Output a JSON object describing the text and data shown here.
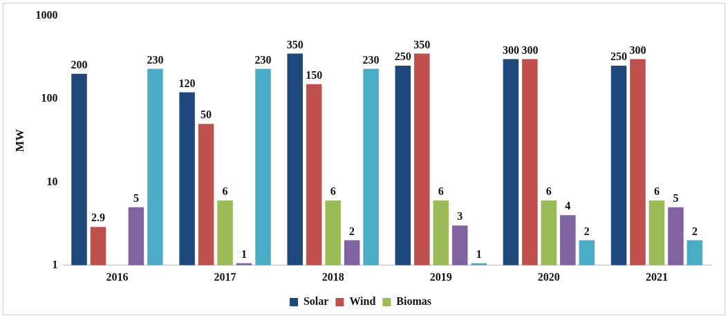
{
  "chart_data": {
    "type": "bar",
    "ylabel": "MW",
    "categories": [
      "2016",
      "2017",
      "2018",
      "2019",
      "2020",
      "2021"
    ],
    "series": [
      {
        "name": "Solar",
        "color": "#1f497d",
        "values": [
          200,
          120,
          350,
          250,
          300,
          250
        ]
      },
      {
        "name": "Wind",
        "color": "#c0504d",
        "values": [
          2.9,
          50,
          150,
          350,
          300,
          300
        ]
      },
      {
        "name": "Biomas",
        "color": "#9bbb59",
        "values": [
          null,
          6,
          6,
          6,
          6,
          6
        ]
      },
      {
        "color": "#8064a2",
        "values": [
          5,
          1,
          2,
          3,
          4,
          5
        ]
      },
      {
        "color": "#4bacc6",
        "values": [
          230,
          230,
          230,
          1,
          2,
          2
        ]
      }
    ],
    "log": "y",
    "ylim": [
      1,
      1000
    ],
    "yticks": [
      1,
      10,
      100,
      1000
    ],
    "grid": false,
    "legend": "bottom",
    "data_labels": true
  }
}
